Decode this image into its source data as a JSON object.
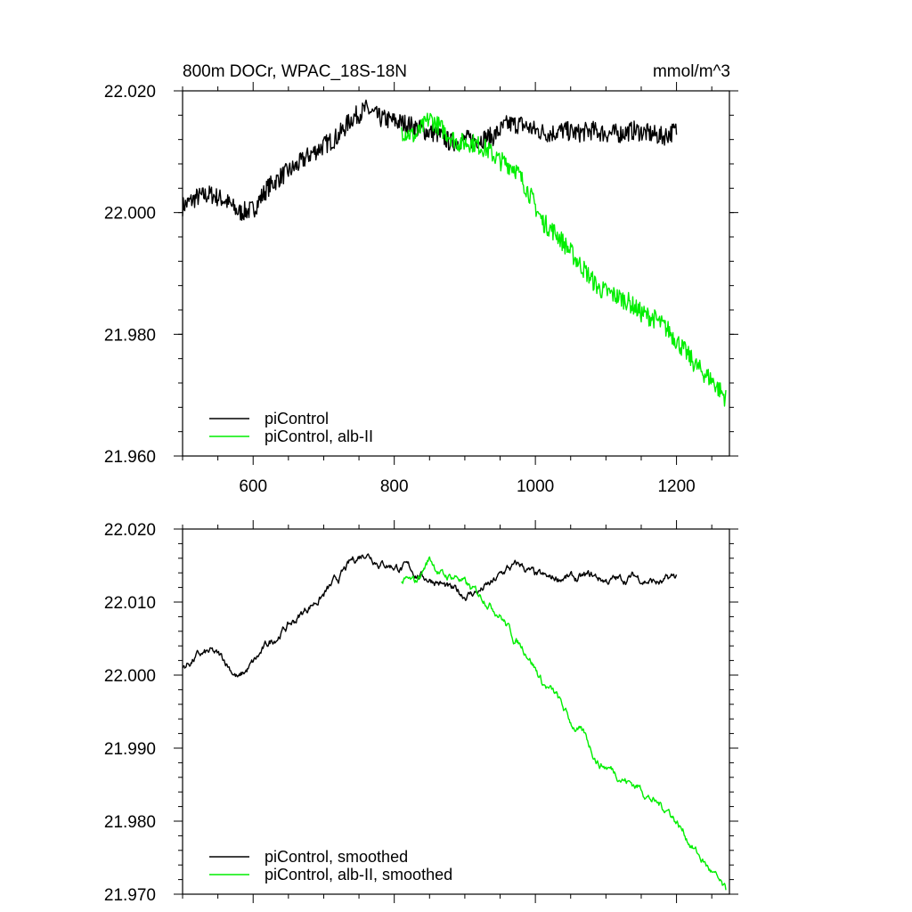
{
  "chart_data": [
    {
      "type": "line",
      "title": "800m DOCr, WPAC_18S-18N",
      "units": "mmol/m^3",
      "xlim": [
        500,
        1275
      ],
      "ylim": [
        21.96,
        22.02
      ],
      "x_ticks": [
        600,
        800,
        1000,
        1200
      ],
      "x_tick_labels": [
        "600",
        "800",
        "1000",
        "1200"
      ],
      "y_ticks": [
        21.96,
        21.98,
        22.0,
        22.02
      ],
      "y_tick_labels": [
        "21.960",
        "21.980",
        "22.000",
        "22.020"
      ],
      "grid": false,
      "legend_position": "bottom-left",
      "series": [
        {
          "name": "piControl",
          "color": "#000000",
          "x": [
            500,
            520,
            540,
            560,
            580,
            600,
            620,
            640,
            660,
            680,
            700,
            720,
            740,
            760,
            780,
            800,
            820,
            840,
            860,
            880,
            900,
            920,
            940,
            960,
            980,
            1000,
            1020,
            1040,
            1060,
            1080,
            1100,
            1120,
            1140,
            1160,
            1180,
            1200
          ],
          "values": [
            22.001,
            22.0025,
            22.003,
            22.002,
            22.0,
            22.0005,
            22.004,
            22.006,
            22.0075,
            22.0095,
            22.011,
            22.0125,
            22.0155,
            22.017,
            22.0155,
            22.015,
            22.0145,
            22.0135,
            22.013,
            22.0115,
            22.012,
            22.012,
            22.0125,
            22.0145,
            22.0145,
            22.0135,
            22.013,
            22.0135,
            22.013,
            22.0135,
            22.013,
            22.013,
            22.0135,
            22.013,
            22.0125,
            22.0135
          ]
        },
        {
          "name": "piControl, alb-II",
          "color": "#00ee00",
          "x": [
            810,
            830,
            850,
            870,
            890,
            910,
            930,
            950,
            970,
            990,
            1010,
            1030,
            1050,
            1070,
            1090,
            1110,
            1130,
            1150,
            1170,
            1190,
            1210,
            1230,
            1250,
            1270
          ],
          "values": [
            22.0135,
            22.0125,
            22.0155,
            22.0135,
            22.0115,
            22.0115,
            22.0105,
            22.0085,
            22.0075,
            22.0035,
            21.9985,
            21.9965,
            21.9935,
            21.9905,
            21.9875,
            21.9865,
            21.9855,
            21.9835,
            21.9825,
            21.9805,
            21.9775,
            21.9745,
            21.9725,
            21.9695
          ]
        }
      ],
      "noise": 0.0016
    },
    {
      "type": "line",
      "title": "",
      "xlim": [
        500,
        1275
      ],
      "ylim": [
        21.97,
        22.02
      ],
      "x_ticks": [
        600,
        800,
        1000,
        1200
      ],
      "x_tick_labels": [],
      "y_ticks": [
        21.97,
        21.98,
        21.99,
        22.0,
        22.01,
        22.02
      ],
      "y_tick_labels": [
        "21.970",
        "21.980",
        "21.990",
        "22.000",
        "22.010",
        "22.020"
      ],
      "grid": false,
      "legend_position": "bottom-left",
      "series": [
        {
          "name": "piControl, smoothed",
          "color": "#000000",
          "x": [
            500,
            520,
            540,
            560,
            580,
            600,
            620,
            640,
            660,
            680,
            700,
            720,
            740,
            760,
            780,
            800,
            820,
            840,
            860,
            880,
            900,
            920,
            940,
            960,
            980,
            1000,
            1020,
            1040,
            1060,
            1080,
            1100,
            1120,
            1140,
            1160,
            1180,
            1200
          ],
          "values": [
            22.001,
            22.0025,
            22.003,
            22.002,
            21.9995,
            22.0015,
            22.004,
            22.006,
            22.0075,
            22.0095,
            22.011,
            22.013,
            22.0155,
            22.017,
            22.0155,
            22.015,
            22.0145,
            22.0135,
            22.013,
            22.0115,
            22.011,
            22.0115,
            22.0125,
            22.0145,
            22.015,
            22.0135,
            22.013,
            22.0135,
            22.013,
            22.0135,
            22.013,
            22.013,
            22.0135,
            22.013,
            22.0125,
            22.0135
          ]
        },
        {
          "name": "piControl, alb-II, smoothed",
          "color": "#00ee00",
          "x": [
            810,
            830,
            850,
            870,
            890,
            910,
            930,
            950,
            970,
            990,
            1010,
            1030,
            1050,
            1070,
            1090,
            1110,
            1130,
            1150,
            1170,
            1190,
            1210,
            1230,
            1250,
            1270
          ],
          "values": [
            22.013,
            22.0125,
            22.016,
            22.0135,
            22.0135,
            22.0115,
            22.0105,
            22.0085,
            22.005,
            22.003,
            21.999,
            21.997,
            21.9935,
            21.9915,
            21.988,
            21.987,
            21.9855,
            21.9845,
            21.9825,
            21.9815,
            21.9785,
            21.9755,
            21.973,
            21.97
          ]
        }
      ],
      "noise": 0.0004
    }
  ]
}
